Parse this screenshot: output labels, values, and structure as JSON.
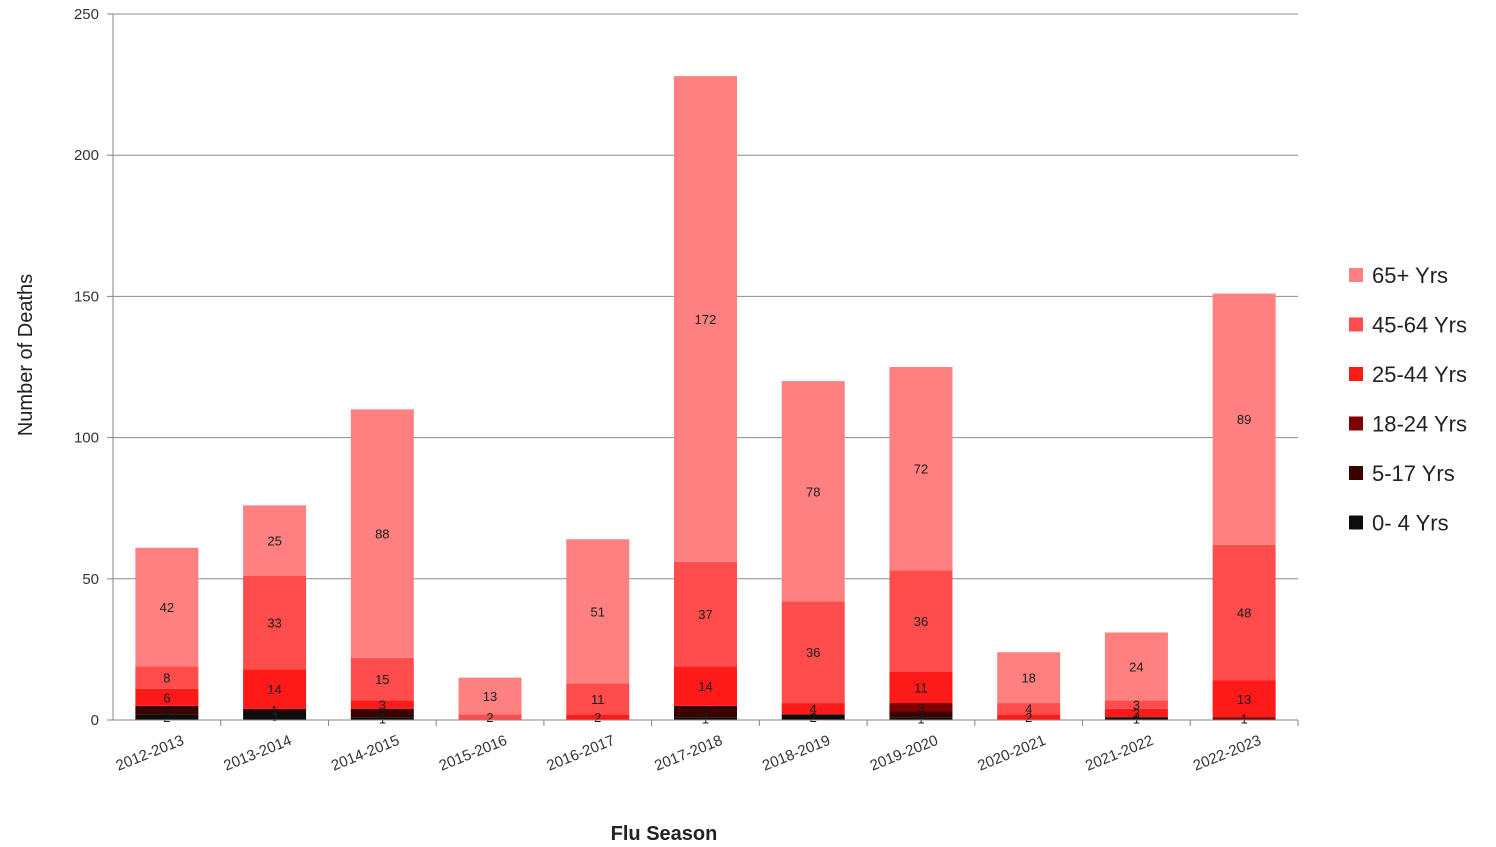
{
  "chart_data": {
    "type": "bar",
    "stacked": true,
    "title": "",
    "xlabel": "Flu Season",
    "ylabel": "Number of Deaths",
    "ylim": [
      0,
      250
    ],
    "yticks": [
      0,
      50,
      100,
      150,
      200,
      250
    ],
    "grid": true,
    "legend_position": "right",
    "categories": [
      "2012-2013",
      "2013-2014",
      "2014-2015",
      "2015-2016",
      "2016-2017",
      "2017-2018",
      "2018-2019",
      "2019-2020",
      "2020-2021",
      "2021-2022",
      "2022-2023"
    ],
    "series": [
      {
        "name": "0- 4 Yrs",
        "color": "#0d0d0d",
        "values": [
          2,
          3,
          1,
          0,
          0,
          1,
          2,
          1,
          0,
          1,
          0
        ]
      },
      {
        "name": "5-17 Yrs",
        "color": "#3b0000",
        "values": [
          3,
          1,
          3,
          0,
          0,
          4,
          0,
          2,
          0,
          0,
          0
        ]
      },
      {
        "name": "18-24 Yrs",
        "color": "#7f0000",
        "values": [
          0,
          0,
          0,
          0,
          0,
          0,
          0,
          3,
          0,
          0,
          1
        ]
      },
      {
        "name": "25-44 Yrs",
        "color": "#ff1a1a",
        "values": [
          6,
          14,
          3,
          0,
          2,
          14,
          4,
          11,
          2,
          3,
          13
        ]
      },
      {
        "name": "45-64 Yrs",
        "color": "#ff4d4d",
        "values": [
          8,
          33,
          15,
          2,
          11,
          37,
          36,
          36,
          4,
          3,
          48
        ]
      },
      {
        "name": "65+ Yrs",
        "color": "#ff8080",
        "values": [
          42,
          25,
          88,
          13,
          51,
          172,
          78,
          72,
          18,
          24,
          89
        ]
      }
    ],
    "legend_order": [
      "65+ Yrs",
      "45-64 Yrs",
      "25-44 Yrs",
      "18-24 Yrs",
      "5-17 Yrs",
      "0- 4 Yrs"
    ]
  }
}
